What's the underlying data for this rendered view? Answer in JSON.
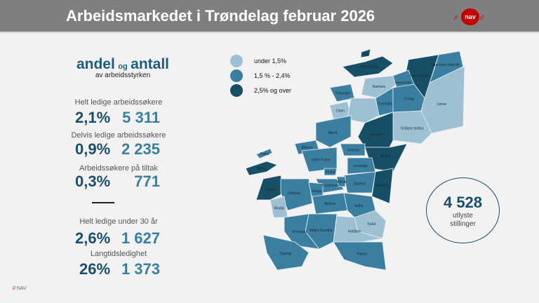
{
  "header": {
    "title": "Arbeidsmarkedet i Trøndelag februar 2026",
    "logo_text": "nav"
  },
  "stats": {
    "heading_a": "andel",
    "heading_og": "og",
    "heading_b": "antall",
    "subheading": "av arbeidsstyrken",
    "items": [
      {
        "label": "Helt ledige arbeidssøkere",
        "percent": "2,1%",
        "count": "5 311"
      },
      {
        "label": "Delvis ledige arbeidssøkere",
        "percent": "0,9%",
        "count": "2 235"
      },
      {
        "label": "Arbeidssøkere på tiltak",
        "percent": "0,3%",
        "count": "771"
      },
      {
        "label": "Helt ledige under 30 år",
        "percent": "2,6%",
        "count": "1 627"
      },
      {
        "label": "Langtidsledighet",
        "percent": "26%",
        "count": "1 373"
      }
    ]
  },
  "legend": [
    {
      "label": "under 1,5%",
      "color": "#9dc0d3"
    },
    {
      "label": "1,5 % - 2,4%",
      "color": "#3a7fa0"
    },
    {
      "label": "2,5% og over",
      "color": "#174f66"
    }
  ],
  "vacancies": {
    "count": "4 528",
    "line1": "utlyste",
    "line2": "stillinger"
  },
  "map": {
    "regions": [
      {
        "name": "Lierne",
        "cat": 0
      },
      {
        "name": "Raarvihke Røyrvik",
        "cat": 1
      },
      {
        "name": "Namsskogan",
        "cat": 2
      },
      {
        "name": "Nærøysund",
        "cat": 2
      },
      {
        "name": "Leka",
        "cat": 2
      },
      {
        "name": "Namsos",
        "cat": 0
      },
      {
        "name": "Høylandet",
        "cat": 1
      },
      {
        "name": "Overhalla",
        "cat": 1
      },
      {
        "name": "Grong",
        "cat": 1
      },
      {
        "name": "Flatanger",
        "cat": 1
      },
      {
        "name": "Osen",
        "cat": 0
      },
      {
        "name": "Snåase Snåsa",
        "cat": 0
      },
      {
        "name": "",
        "cat": 0
      },
      {
        "name": "Åfjord",
        "cat": 1
      },
      {
        "name": "Steinkjer",
        "cat": 2
      },
      {
        "name": "Verdal",
        "cat": 2
      },
      {
        "name": "Inderøy",
        "cat": 1
      },
      {
        "name": "Ørland",
        "cat": 1
      },
      {
        "name": "Frøya",
        "cat": 1
      },
      {
        "name": "Hitra",
        "cat": 2
      },
      {
        "name": "Indre Fosen",
        "cat": 1
      },
      {
        "name": "Levanger",
        "cat": 1
      },
      {
        "name": "Frosta",
        "cat": 1
      },
      {
        "name": "Stjørdal",
        "cat": 1
      },
      {
        "name": "Meråker",
        "cat": 2
      },
      {
        "name": "Trondheim",
        "cat": 1
      },
      {
        "name": "Malvik",
        "cat": 1
      },
      {
        "name": "Heim",
        "cat": 2
      },
      {
        "name": "Orkland",
        "cat": 1
      },
      {
        "name": "Skaun",
        "cat": 1
      },
      {
        "name": "Rindal",
        "cat": 0
      },
      {
        "name": "Melhus",
        "cat": 1
      },
      {
        "name": "Selbu",
        "cat": 1
      },
      {
        "name": "Tydal",
        "cat": 0
      },
      {
        "name": "Holtålen",
        "cat": 0
      },
      {
        "name": "Midtre Gauldal",
        "cat": 1
      },
      {
        "name": "Rennebu",
        "cat": 1
      },
      {
        "name": "Oppdal",
        "cat": 1
      },
      {
        "name": "Røros",
        "cat": 1
      }
    ]
  },
  "footer": {
    "mark": "//",
    "text": "NAV"
  }
}
